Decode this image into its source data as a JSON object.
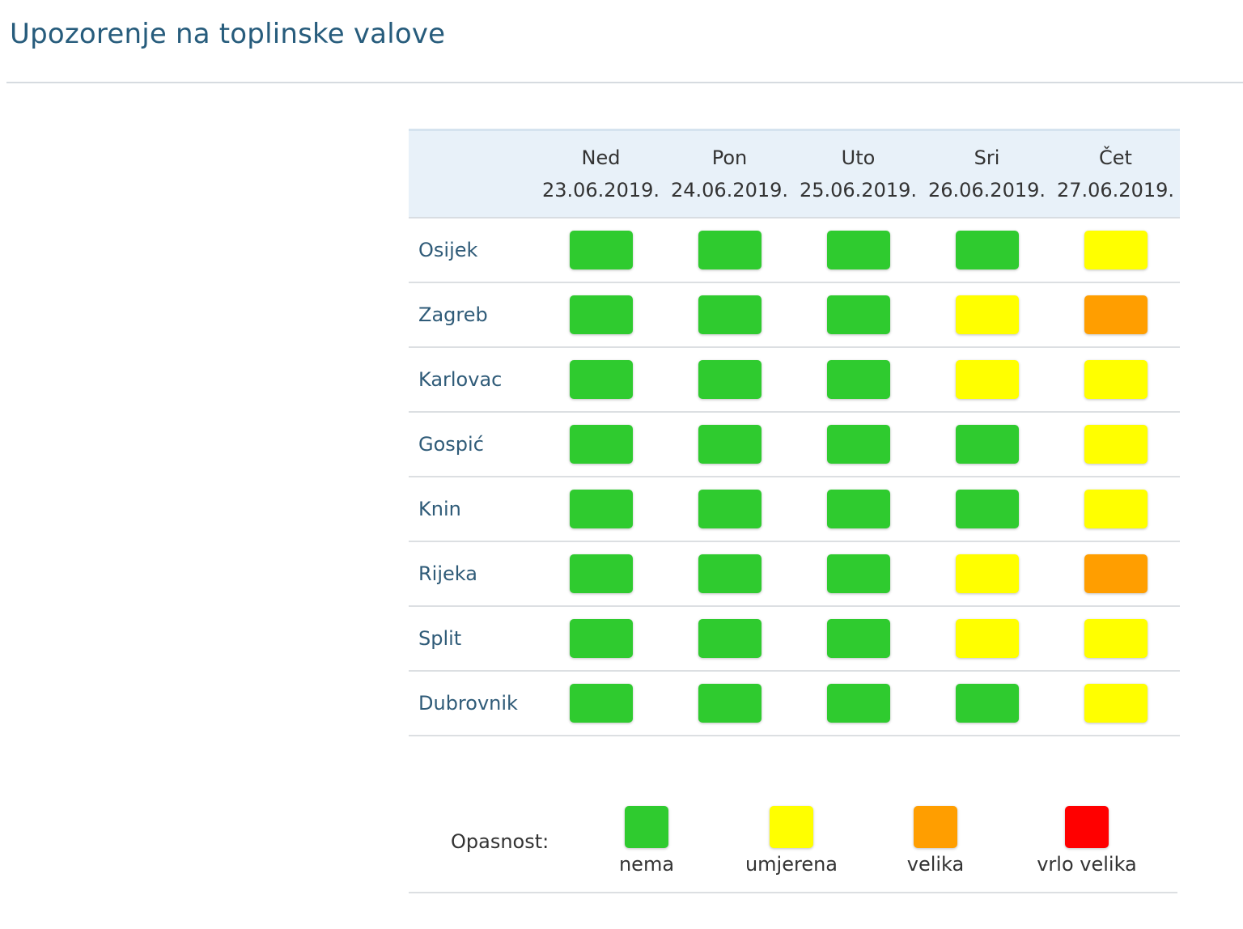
{
  "page": {
    "title": "Upozorenje na toplinske valove"
  },
  "table": {
    "days": [
      {
        "name": "Ned",
        "date": "23.06.2019."
      },
      {
        "name": "Pon",
        "date": "24.06.2019."
      },
      {
        "name": "Uto",
        "date": "25.06.2019."
      },
      {
        "name": "Sri",
        "date": "26.06.2019."
      },
      {
        "name": "Čet",
        "date": "27.06.2019."
      }
    ],
    "rows": [
      {
        "city": "Osijek",
        "levels": [
          0,
          0,
          0,
          0,
          1
        ]
      },
      {
        "city": "Zagreb",
        "levels": [
          0,
          0,
          0,
          1,
          2
        ]
      },
      {
        "city": "Karlovac",
        "levels": [
          0,
          0,
          0,
          1,
          1
        ]
      },
      {
        "city": "Gospić",
        "levels": [
          0,
          0,
          0,
          0,
          1
        ]
      },
      {
        "city": "Knin",
        "levels": [
          0,
          0,
          0,
          0,
          1
        ]
      },
      {
        "city": "Rijeka",
        "levels": [
          0,
          0,
          0,
          1,
          2
        ]
      },
      {
        "city": "Split",
        "levels": [
          0,
          0,
          0,
          1,
          1
        ]
      },
      {
        "city": "Dubrovnik",
        "levels": [
          0,
          0,
          0,
          0,
          1
        ]
      }
    ]
  },
  "legend": {
    "title": "Opasnost:",
    "items": [
      {
        "label": "nema",
        "color": "#2fcb2f"
      },
      {
        "label": "umjerena",
        "color": "#ffff00"
      },
      {
        "label": "velika",
        "color": "#ff9e00"
      },
      {
        "label": "vrlo velika",
        "color": "#ff0000"
      }
    ]
  }
}
